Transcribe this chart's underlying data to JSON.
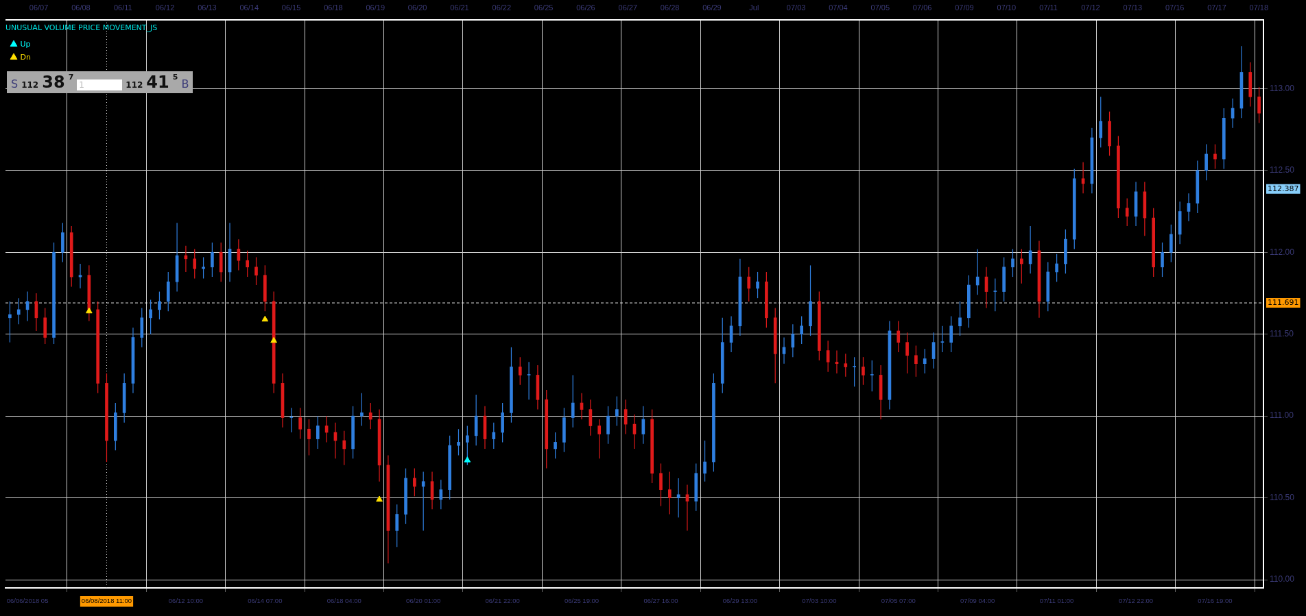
{
  "chart_data": {
    "type": "candlestick",
    "categories": [
      null,
      null,
      "06/06/2018 05",
      null,
      null,
      null,
      null,
      null,
      null,
      null,
      null,
      "06/08/2018 11:00",
      null,
      null,
      null,
      null,
      null,
      null,
      null,
      null,
      "06/12 10:00",
      null,
      null,
      null,
      null,
      null,
      null,
      null,
      null,
      "06/14 07:00",
      null,
      null,
      null,
      null,
      null,
      null,
      null,
      null,
      "06/18 04:00",
      null,
      null,
      null,
      null,
      null,
      null,
      null,
      null,
      "06/20 01:00",
      null,
      null,
      null,
      null,
      null,
      null,
      null,
      null,
      "06/21 22:00",
      null,
      null,
      null,
      null,
      null,
      null,
      null,
      null,
      "06/25 19:00",
      null,
      null,
      null,
      null,
      null,
      null,
      null,
      null,
      "06/27 16:00",
      null,
      null,
      null,
      null,
      null,
      null,
      null,
      null,
      "06/29 13:00",
      null,
      null,
      null,
      null,
      null,
      null,
      null,
      null,
      "07/03 10:00",
      null,
      null,
      null,
      null,
      null,
      null,
      null,
      null,
      "07/05 07:00",
      null,
      null,
      null,
      null,
      null,
      null,
      null,
      null,
      "07/09 04:00",
      null,
      null,
      null,
      null,
      null,
      null,
      null,
      null,
      "07/11 01:00",
      null,
      null,
      null,
      null,
      null,
      null,
      null,
      null,
      "07/12 22:00",
      null,
      null,
      null,
      null,
      null,
      null,
      null,
      null,
      "07/16 19:00",
      null,
      null,
      null,
      null,
      null
    ],
    "series": [
      {
        "ohlc": [
          [
            111.6,
            111.7,
            111.45,
            111.62
          ],
          [
            111.62,
            111.72,
            111.56,
            111.65
          ],
          [
            111.65,
            111.76,
            111.58,
            111.7
          ],
          [
            111.7,
            111.75,
            111.52,
            111.6
          ],
          [
            111.6,
            111.66,
            111.44,
            111.48
          ],
          [
            111.48,
            112.06,
            111.44,
            112.0
          ],
          [
            112.0,
            112.18,
            111.94,
            112.12
          ],
          [
            112.12,
            112.16,
            111.79,
            111.85
          ],
          [
            111.85,
            111.93,
            111.78,
            111.86
          ],
          [
            111.86,
            111.92,
            111.58,
            111.65
          ],
          [
            111.65,
            111.7,
            111.14,
            111.2
          ],
          [
            111.2,
            111.26,
            110.72,
            110.85
          ],
          [
            110.85,
            111.08,
            110.79,
            111.02
          ],
          [
            111.02,
            111.26,
            110.96,
            111.2
          ],
          [
            111.2,
            111.54,
            111.14,
            111.48
          ],
          [
            111.48,
            111.66,
            111.42,
            111.6
          ],
          [
            111.6,
            111.71,
            111.5,
            111.65
          ],
          [
            111.65,
            111.76,
            111.59,
            111.7
          ],
          [
            111.7,
            111.88,
            111.64,
            111.82
          ],
          [
            111.82,
            112.18,
            111.76,
            111.98
          ],
          [
            111.98,
            112.04,
            111.88,
            111.96
          ],
          [
            111.96,
            112.02,
            111.84,
            111.9
          ],
          [
            111.9,
            111.97,
            111.84,
            111.91
          ],
          [
            111.91,
            112.06,
            111.85,
            112.0
          ],
          [
            112.0,
            112.06,
            111.82,
            111.88
          ],
          [
            111.88,
            112.18,
            111.82,
            112.02
          ],
          [
            112.02,
            112.08,
            111.89,
            111.95
          ],
          [
            111.95,
            112.01,
            111.85,
            111.91
          ],
          [
            111.91,
            111.97,
            111.8,
            111.86
          ],
          [
            111.86,
            111.92,
            111.64,
            111.7
          ],
          [
            111.7,
            111.76,
            111.14,
            111.2
          ],
          [
            111.2,
            111.26,
            110.93,
            110.99
          ],
          [
            110.99,
            111.05,
            110.9,
            110.99
          ],
          [
            110.99,
            111.05,
            110.86,
            110.92
          ],
          [
            110.92,
            110.98,
            110.76,
            110.86
          ],
          [
            110.86,
            111.0,
            110.8,
            110.94
          ],
          [
            110.94,
            111.0,
            110.84,
            110.9
          ],
          [
            110.9,
            110.96,
            110.74,
            110.85
          ],
          [
            110.85,
            110.91,
            110.7,
            110.8
          ],
          [
            110.8,
            111.06,
            110.74,
            111.0
          ],
          [
            111.0,
            111.14,
            110.94,
            111.02
          ],
          [
            111.02,
            111.08,
            110.92,
            110.98
          ],
          [
            110.98,
            111.04,
            110.6,
            110.7
          ],
          [
            110.7,
            110.76,
            110.1,
            110.3
          ],
          [
            110.3,
            110.46,
            110.2,
            110.4
          ],
          [
            110.4,
            110.68,
            110.34,
            110.62
          ],
          [
            110.62,
            110.68,
            110.51,
            110.57
          ],
          [
            110.57,
            110.66,
            110.3,
            110.6
          ],
          [
            110.6,
            110.66,
            110.43,
            110.49
          ],
          [
            110.49,
            110.61,
            110.43,
            110.55
          ],
          [
            110.55,
            110.88,
            110.49,
            110.82
          ],
          [
            110.82,
            110.92,
            110.76,
            110.84
          ],
          [
            110.84,
            110.94,
            110.7,
            110.88
          ],
          [
            110.88,
            111.13,
            110.82,
            111.0
          ],
          [
            111.0,
            111.06,
            110.8,
            110.86
          ],
          [
            110.86,
            110.96,
            110.8,
            110.9
          ],
          [
            110.9,
            111.08,
            110.84,
            111.02
          ],
          [
            111.02,
            111.42,
            110.96,
            111.3
          ],
          [
            111.3,
            111.36,
            111.19,
            111.25
          ],
          [
            111.25,
            111.33,
            111.1,
            111.25
          ],
          [
            111.25,
            111.31,
            111.04,
            111.1
          ],
          [
            111.1,
            111.16,
            110.68,
            110.8
          ],
          [
            110.8,
            110.9,
            110.74,
            110.84
          ],
          [
            110.84,
            111.05,
            110.78,
            110.99
          ],
          [
            110.99,
            111.25,
            110.93,
            111.08
          ],
          [
            111.08,
            111.14,
            110.98,
            111.04
          ],
          [
            111.04,
            111.1,
            110.88,
            110.94
          ],
          [
            110.94,
            110.98,
            110.74,
            110.89
          ],
          [
            110.89,
            111.06,
            110.83,
            111.0
          ],
          [
            111.0,
            111.12,
            110.94,
            111.04
          ],
          [
            111.04,
            111.1,
            110.89,
            110.95
          ],
          [
            110.95,
            111.01,
            110.8,
            110.89
          ],
          [
            110.89,
            111.06,
            110.83,
            110.98
          ],
          [
            110.98,
            111.04,
            110.59,
            110.65
          ],
          [
            110.65,
            110.71,
            110.45,
            110.55
          ],
          [
            110.55,
            110.66,
            110.4,
            110.5
          ],
          [
            110.5,
            110.62,
            110.38,
            110.52
          ],
          [
            110.52,
            110.58,
            110.3,
            110.48
          ],
          [
            110.48,
            110.71,
            110.42,
            110.65
          ],
          [
            110.65,
            110.85,
            110.6,
            110.72
          ],
          [
            110.72,
            111.26,
            110.66,
            111.2
          ],
          [
            111.2,
            111.6,
            111.14,
            111.45
          ],
          [
            111.45,
            111.61,
            111.39,
            111.55
          ],
          [
            111.55,
            111.96,
            111.49,
            111.85
          ],
          [
            111.85,
            111.91,
            111.7,
            111.78
          ],
          [
            111.78,
            111.88,
            111.72,
            111.82
          ],
          [
            111.82,
            111.88,
            111.54,
            111.6
          ],
          [
            111.6,
            111.66,
            111.2,
            111.38
          ],
          [
            111.38,
            111.48,
            111.32,
            111.42
          ],
          [
            111.42,
            111.56,
            111.36,
            111.5
          ],
          [
            111.5,
            111.61,
            111.44,
            111.55
          ],
          [
            111.55,
            111.92,
            111.49,
            111.7
          ],
          [
            111.7,
            111.76,
            111.34,
            111.4
          ],
          [
            111.4,
            111.46,
            111.27,
            111.33
          ],
          [
            111.33,
            111.4,
            111.26,
            111.32
          ],
          [
            111.32,
            111.38,
            111.24,
            111.3
          ],
          [
            111.3,
            111.36,
            111.18,
            111.3
          ],
          [
            111.3,
            111.36,
            111.19,
            111.25
          ],
          [
            111.25,
            111.34,
            111.15,
            111.25
          ],
          [
            111.25,
            111.31,
            110.98,
            111.1
          ],
          [
            111.1,
            111.58,
            111.04,
            111.52
          ],
          [
            111.52,
            111.58,
            111.39,
            111.45
          ],
          [
            111.45,
            111.51,
            111.26,
            111.37
          ],
          [
            111.37,
            111.43,
            111.24,
            111.32
          ],
          [
            111.32,
            111.41,
            111.26,
            111.35
          ],
          [
            111.35,
            111.51,
            111.29,
            111.45
          ],
          [
            111.45,
            111.55,
            111.39,
            111.45
          ],
          [
            111.45,
            111.61,
            111.39,
            111.55
          ],
          [
            111.55,
            111.7,
            111.49,
            111.6
          ],
          [
            111.6,
            111.86,
            111.54,
            111.8
          ],
          [
            111.8,
            112.02,
            111.74,
            111.85
          ],
          [
            111.85,
            111.91,
            111.66,
            111.76
          ],
          [
            111.76,
            111.84,
            111.64,
            111.76
          ],
          [
            111.76,
            111.97,
            111.7,
            111.91
          ],
          [
            111.91,
            112.02,
            111.85,
            111.96
          ],
          [
            111.96,
            112.02,
            111.81,
            111.93
          ],
          [
            111.93,
            112.16,
            111.87,
            112.01
          ],
          [
            112.01,
            112.07,
            111.6,
            111.7
          ],
          [
            111.7,
            111.94,
            111.64,
            111.88
          ],
          [
            111.88,
            111.99,
            111.82,
            111.93
          ],
          [
            111.93,
            112.14,
            111.87,
            112.08
          ],
          [
            112.08,
            112.51,
            112.02,
            112.45
          ],
          [
            112.45,
            112.55,
            112.36,
            112.42
          ],
          [
            112.42,
            112.76,
            112.36,
            112.7
          ],
          [
            112.7,
            112.95,
            112.64,
            112.8
          ],
          [
            112.8,
            112.86,
            112.59,
            112.65
          ],
          [
            112.65,
            112.71,
            112.21,
            112.27
          ],
          [
            112.27,
            112.33,
            112.16,
            112.22
          ],
          [
            112.22,
            112.43,
            112.16,
            112.37
          ],
          [
            112.37,
            112.43,
            112.1,
            112.21
          ],
          [
            112.21,
            112.27,
            111.85,
            111.91
          ],
          [
            111.91,
            112.06,
            111.85,
            112.0
          ],
          [
            112.0,
            112.17,
            111.94,
            112.11
          ],
          [
            112.11,
            112.31,
            112.05,
            112.25
          ],
          [
            112.25,
            112.36,
            112.19,
            112.3
          ],
          [
            112.3,
            112.56,
            112.24,
            112.5
          ],
          [
            112.5,
            112.66,
            112.44,
            112.6
          ],
          [
            112.6,
            112.66,
            112.51,
            112.57
          ],
          [
            112.57,
            112.88,
            112.51,
            112.82
          ],
          [
            112.82,
            112.94,
            112.76,
            112.88
          ],
          [
            112.88,
            113.26,
            112.82,
            113.1
          ],
          [
            113.1,
            113.16,
            112.89,
            112.95
          ],
          [
            112.95,
            113.01,
            112.79,
            112.85
          ]
        ],
        "colors": [
          "#2f7fe0",
          "#2f7fe0",
          "#2f7fe0",
          "#e01a1a",
          "#e01a1a",
          "#2f7fe0",
          "#2f7fe0",
          "#e01a1a",
          "#2f7fe0",
          "#e01a1a",
          "#e01a1a",
          "#e01a1a",
          "#2f7fe0",
          "#2f7fe0",
          "#2f7fe0",
          "#2f7fe0",
          "#2f7fe0",
          "#2f7fe0",
          "#2f7fe0",
          "#2f7fe0",
          "#e01a1a",
          "#e01a1a",
          "#2f7fe0",
          "#2f7fe0",
          "#e01a1a",
          "#2f7fe0",
          "#e01a1a",
          "#e01a1a",
          "#e01a1a",
          "#e01a1a",
          "#e01a1a",
          "#e01a1a",
          "#2f7fe0",
          "#e01a1a",
          "#e01a1a",
          "#2f7fe0",
          "#e01a1a",
          "#e01a1a",
          "#e01a1a",
          "#2f7fe0",
          "#2f7fe0",
          "#e01a1a",
          "#e01a1a",
          "#e01a1a",
          "#2f7fe0",
          "#2f7fe0",
          "#e01a1a",
          "#2f7fe0",
          "#e01a1a",
          "#2f7fe0",
          "#2f7fe0",
          "#2f7fe0",
          "#2f7fe0",
          "#2f7fe0",
          "#e01a1a",
          "#2f7fe0",
          "#2f7fe0",
          "#2f7fe0",
          "#e01a1a",
          "#2f7fe0",
          "#e01a1a",
          "#e01a1a",
          "#2f7fe0",
          "#2f7fe0",
          "#2f7fe0",
          "#e01a1a",
          "#e01a1a",
          "#e01a1a",
          "#2f7fe0",
          "#2f7fe0",
          "#e01a1a",
          "#e01a1a",
          "#2f7fe0",
          "#e01a1a",
          "#e01a1a",
          "#e01a1a",
          "#2f7fe0",
          "#e01a1a",
          "#2f7fe0",
          "#2f7fe0",
          "#2f7fe0",
          "#2f7fe0",
          "#2f7fe0",
          "#2f7fe0",
          "#e01a1a",
          "#2f7fe0",
          "#e01a1a",
          "#e01a1a",
          "#2f7fe0",
          "#2f7fe0",
          "#2f7fe0",
          "#2f7fe0",
          "#e01a1a",
          "#e01a1a",
          "#e01a1a",
          "#e01a1a",
          "#2f7fe0",
          "#e01a1a",
          "#2f7fe0",
          "#e01a1a",
          "#2f7fe0",
          "#e01a1a",
          "#e01a1a",
          "#e01a1a",
          "#2f7fe0",
          "#2f7fe0",
          "#2f7fe0",
          "#2f7fe0",
          "#2f7fe0",
          "#2f7fe0",
          "#2f7fe0",
          "#e01a1a",
          "#2f7fe0",
          "#2f7fe0",
          "#2f7fe0",
          "#e01a1a",
          "#2f7fe0",
          "#e01a1a",
          "#2f7fe0",
          "#2f7fe0",
          "#2f7fe0",
          "#2f7fe0",
          "#e01a1a",
          "#2f7fe0",
          "#2f7fe0",
          "#e01a1a",
          "#e01a1a",
          "#e01a1a",
          "#2f7fe0",
          "#e01a1a",
          "#e01a1a",
          "#2f7fe0",
          "#2f7fe0",
          "#2f7fe0",
          "#2f7fe0",
          "#2f7fe0",
          "#2f7fe0",
          "#e01a1a",
          "#2f7fe0",
          "#2f7fe0",
          "#2f7fe0",
          "#e01a1a",
          "#e01a1a"
        ]
      },
      {
        "type": "scatter",
        "name": "Up",
        "color": "#00ffff",
        "values": [
          null,
          null,
          null,
          null,
          null,
          null,
          null,
          null,
          null,
          null,
          null,
          null,
          null,
          null,
          null,
          null,
          null,
          null,
          null,
          null,
          null,
          null,
          null,
          null,
          null,
          null,
          null,
          null,
          null,
          null,
          null,
          null,
          null,
          null,
          null,
          null,
          null,
          null,
          null,
          null,
          null,
          null,
          null,
          null,
          null,
          null,
          null,
          null,
          null,
          null,
          null,
          null,
          110.73,
          null,
          null,
          null,
          null,
          null,
          null,
          null,
          null,
          null,
          null,
          null,
          null,
          null,
          null,
          null,
          null,
          null,
          null,
          null,
          null,
          null,
          null,
          null,
          null,
          null,
          null,
          null,
          null,
          null,
          null,
          null,
          null,
          null,
          null,
          null,
          null,
          null,
          null,
          null,
          null,
          null,
          null,
          null,
          null,
          null,
          null,
          null,
          null,
          null,
          null,
          null,
          null,
          null,
          null,
          null,
          null,
          null,
          null,
          null,
          null,
          null,
          null,
          null,
          null,
          null,
          null,
          null,
          null,
          null,
          null,
          null,
          null,
          null,
          null,
          null,
          null,
          null,
          null,
          null,
          null,
          null,
          null,
          null,
          null,
          null,
          null,
          null,
          null,
          null,
          null
        ]
      },
      {
        "type": "scatter",
        "name": "Dn",
        "color": "#ffe000",
        "values": [
          null,
          null,
          null,
          null,
          null,
          null,
          null,
          null,
          null,
          111.64,
          null,
          null,
          null,
          null,
          null,
          null,
          null,
          null,
          null,
          null,
          null,
          null,
          null,
          null,
          null,
          null,
          null,
          null,
          null,
          111.59,
          111.46,
          null,
          null,
          null,
          null,
          null,
          null,
          null,
          null,
          null,
          null,
          null,
          110.49,
          null,
          null,
          null,
          null,
          null,
          null,
          null,
          null,
          null,
          null,
          null,
          null,
          null,
          null,
          null,
          null,
          null,
          null,
          null,
          null,
          null,
          null,
          null,
          null,
          null,
          null,
          null,
          null,
          null,
          null,
          null,
          null,
          null,
          null,
          null,
          null,
          null,
          null,
          null,
          null,
          null,
          null,
          null,
          null,
          null,
          null,
          null,
          null,
          null,
          null,
          null,
          null,
          null,
          null,
          null,
          null,
          null,
          null,
          null,
          null,
          null,
          null,
          null,
          null,
          null,
          null,
          null,
          null,
          null,
          null,
          null,
          null,
          null,
          null,
          null,
          null,
          null,
          null,
          null,
          null,
          null,
          null,
          null,
          null,
          null,
          null,
          null,
          null,
          null,
          null,
          null,
          null,
          null,
          null,
          null,
          null,
          null,
          null,
          null,
          null
        ]
      }
    ],
    "ylim": [
      109.95,
      113.42
    ],
    "yticks": [
      {
        "value": 110,
        "label": "110.00"
      },
      {
        "value": 110.5,
        "label": "110.50"
      },
      {
        "value": 111,
        "label": "111.00"
      },
      {
        "value": 111.5,
        "label": "111.50"
      },
      {
        "value": 112,
        "label": "112.00"
      },
      {
        "value": 112.5,
        "label": "112.50"
      },
      {
        "value": 113,
        "label": "113.00"
      }
    ],
    "grid": true,
    "marker": "triangle",
    "legend": "top left",
    "legend_title": "UNUSUAL VOLUME PRICE MOVEMENT_JS",
    "ref_lines": [
      {
        "axis": "y",
        "value": 111.691,
        "label": "111.691",
        "line_style": "dashed"
      },
      {
        "axis": "x",
        "value": "06/08/2018 11:00",
        "line_style": "dotted"
      }
    ],
    "annotations": [
      "S",
      "112",
      "38",
      "7",
      "1",
      "112",
      "41",
      "5",
      "B",
      "112.387",
      "06/07",
      "06/08",
      "06/11",
      "06/12",
      "06/13",
      "06/14",
      "06/15",
      "06/18",
      "06/19",
      "06/20",
      "06/21",
      "06/22",
      "06/25",
      "06/26",
      "06/27",
      "06/28",
      "06/29",
      "Jul",
      "07/03",
      "07/04",
      "07/05",
      "07/06",
      "07/09",
      "07/10",
      "07/11",
      "07/12",
      "07/13",
      "07/16",
      "07/17",
      "07/18"
    ]
  }
}
